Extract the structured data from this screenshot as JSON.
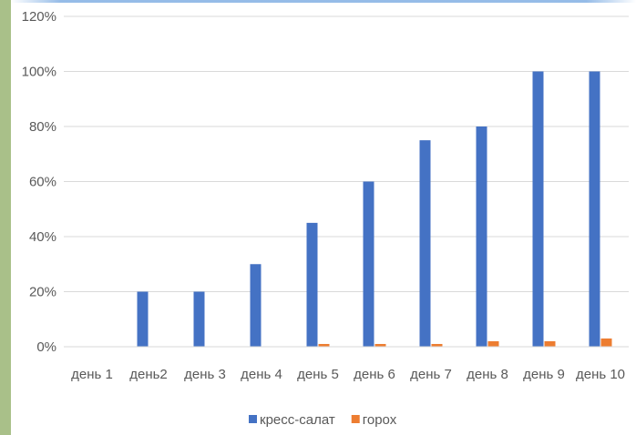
{
  "chart_data": {
    "type": "bar",
    "categories": [
      "день 1",
      "день2",
      "день 3",
      "день 4",
      "день 5",
      "день 6",
      "день 7",
      "день 8",
      "день 9",
      "день 10"
    ],
    "series": [
      {
        "name": "кресс-салат",
        "color": "#4472c4",
        "values": [
          0,
          20,
          20,
          30,
          45,
          60,
          75,
          80,
          100,
          100
        ]
      },
      {
        "name": "горох",
        "color": "#ed7d31",
        "values": [
          0,
          0,
          0,
          0,
          1,
          1,
          1,
          2,
          2,
          3
        ]
      }
    ],
    "y_ticks": [
      "0%",
      "20%",
      "40%",
      "60%",
      "80%",
      "100%",
      "120%"
    ],
    "ylim": [
      0,
      120
    ],
    "grid": true,
    "legend": "bottom"
  }
}
